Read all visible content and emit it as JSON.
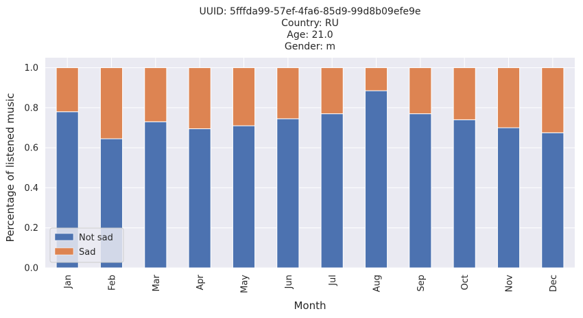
{
  "chart_data": {
    "type": "bar",
    "stacked": true,
    "title_lines": [
      "UUID: 5fffda99-57ef-4fa6-85d9-99d8b09efe9e",
      "Country: RU",
      "Age: 21.0",
      "Gender: m"
    ],
    "xlabel": "Month",
    "ylabel": "Percentage of listened music",
    "ylim": [
      0,
      1.05
    ],
    "yticks": [
      "0.0",
      "0.2",
      "0.4",
      "0.6",
      "0.8",
      "1.0"
    ],
    "grid": true,
    "legend_position": "bottom-left",
    "categories": [
      "Jan",
      "Feb",
      "Mar",
      "Apr",
      "May",
      "Jun",
      "Jul",
      "Aug",
      "Sep",
      "Oct",
      "Nov",
      "Dec"
    ],
    "series": [
      {
        "name": "Not sad",
        "color": "#4c72b0",
        "values": [
          0.78,
          0.645,
          0.73,
          0.695,
          0.71,
          0.745,
          0.77,
          0.885,
          0.77,
          0.74,
          0.7,
          0.675
        ]
      },
      {
        "name": "Sad",
        "color": "#dd8452",
        "values": [
          0.22,
          0.355,
          0.27,
          0.305,
          0.29,
          0.255,
          0.23,
          0.115,
          0.23,
          0.26,
          0.3,
          0.325
        ]
      }
    ],
    "background_color": "#eaeaf2",
    "grid_color": "#ffffff"
  }
}
